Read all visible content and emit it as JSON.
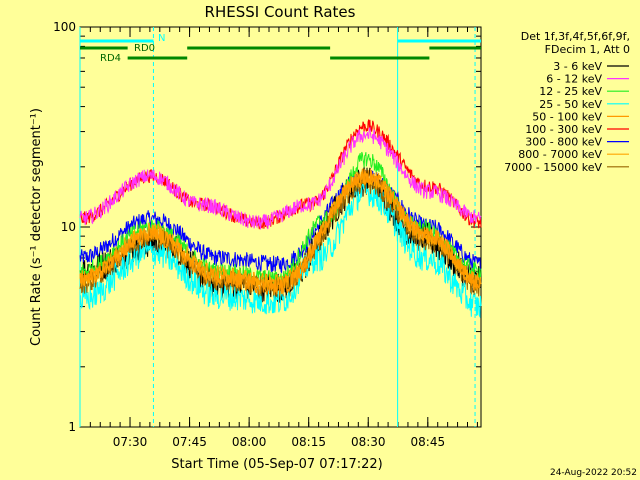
{
  "chart_data": {
    "type": "line",
    "title": "RHESSI Count Rates",
    "xlabel": "Start Time (05-Sep-07 07:17:22)",
    "ylabel": "Count Rate (s⁻¹ detector segment⁻¹)",
    "yscale": "log",
    "ylim": [
      1,
      100
    ],
    "xlim_minutes": [
      0,
      101
    ],
    "x_ticks": [
      {
        "label": "07:30",
        "minute": 12.6
      },
      {
        "label": "07:45",
        "minute": 27.6
      },
      {
        "label": "08:00",
        "minute": 42.6
      },
      {
        "label": "08:15",
        "minute": 57.6
      },
      {
        "label": "08:30",
        "minute": 72.6
      },
      {
        "label": "08:45",
        "minute": 87.6
      }
    ],
    "y_ticks": [
      {
        "label": "1",
        "value": 1
      },
      {
        "label": "10",
        "value": 10
      },
      {
        "label": "100",
        "value": 100
      }
    ],
    "legend_header": [
      "Det 1f,3f,4f,5f,6f,9f,",
      "FDecim 1, Att 0"
    ],
    "legend_placement": "right",
    "series": [
      {
        "name": "3 - 6 keV",
        "color": "#000000",
        "peaks": [
          [
            0,
            6.0
          ],
          [
            20,
            8.5
          ],
          [
            35,
            5.2
          ],
          [
            50,
            5.0
          ],
          [
            72,
            17
          ],
          [
            85,
            9
          ],
          [
            101,
            5.5
          ]
        ]
      },
      {
        "name": "6 - 12 keV",
        "color": "#ff33ff",
        "peaks": [
          [
            0,
            11
          ],
          [
            18,
            18
          ],
          [
            30,
            13
          ],
          [
            45,
            10.5
          ],
          [
            58,
            13
          ],
          [
            72,
            29
          ],
          [
            88,
            15
          ],
          [
            101,
            11
          ]
        ]
      },
      {
        "name": "12 - 25 keV",
        "color": "#22ee22",
        "peaks": [
          [
            0,
            6.0
          ],
          [
            18,
            10
          ],
          [
            35,
            6.0
          ],
          [
            50,
            5.5
          ],
          [
            62,
            11
          ],
          [
            72,
            22
          ],
          [
            85,
            10
          ],
          [
            101,
            6.0
          ]
        ]
      },
      {
        "name": "25 - 50 keV",
        "color": "#00ffff",
        "peaks": [
          [
            0,
            4.3
          ],
          [
            18,
            7.5
          ],
          [
            35,
            4.5
          ],
          [
            50,
            4.2
          ],
          [
            60,
            7
          ],
          [
            72,
            15
          ],
          [
            87,
            7
          ],
          [
            101,
            4.0
          ]
        ]
      },
      {
        "name": "50 - 100 keV",
        "color": "#ff9900",
        "peaks": [
          [
            0,
            5.5
          ],
          [
            18,
            9
          ],
          [
            35,
            5.5
          ],
          [
            50,
            5.0
          ],
          [
            72,
            18
          ],
          [
            88,
            9
          ],
          [
            101,
            5.2
          ]
        ]
      },
      {
        "name": "100 - 300 keV",
        "color": "#ff0000",
        "peaks": [
          [
            0,
            11
          ],
          [
            18,
            18
          ],
          [
            30,
            13
          ],
          [
            45,
            10.5
          ],
          [
            58,
            13
          ],
          [
            72,
            32
          ],
          [
            88,
            16
          ],
          [
            101,
            10.5
          ]
        ]
      },
      {
        "name": "300 - 800 keV",
        "color": "#0000ff",
        "peaks": [
          [
            0,
            7
          ],
          [
            18,
            11
          ],
          [
            35,
            7
          ],
          [
            50,
            6.5
          ],
          [
            72,
            18
          ],
          [
            88,
            10
          ],
          [
            101,
            6.5
          ]
        ]
      },
      {
        "name": "800 - 7000 keV",
        "color": "#ffa500",
        "peaks": [
          [
            0,
            5.5
          ],
          [
            18,
            9.5
          ],
          [
            35,
            5.8
          ],
          [
            50,
            5.3
          ],
          [
            72,
            17.5
          ],
          [
            88,
            9
          ],
          [
            101,
            5.3
          ]
        ]
      },
      {
        "name": "7000 - 15000 keV",
        "color": "#996600",
        "peaks": [
          [
            0,
            5.2
          ],
          [
            18,
            9
          ],
          [
            35,
            5.4
          ],
          [
            50,
            5.0
          ],
          [
            72,
            16.5
          ],
          [
            88,
            8.5
          ],
          [
            101,
            5.0
          ]
        ]
      }
    ],
    "legend_entries": [
      "3 - 6 keV",
      "6 - 12 keV",
      "12 - 25 keV",
      "25 - 50 keV",
      "50 - 100 keV",
      "100 - 300 keV",
      "300 - 800 keV",
      "800 - 7000 keV",
      "7000 - 15000 keV"
    ],
    "status_bars": [
      {
        "label": "N",
        "color": "#00ffff",
        "segments": [
          [
            0,
            18.5
          ],
          [
            80,
            101
          ]
        ]
      },
      {
        "label": "RD0",
        "color": "#008800",
        "segments": [
          [
            0,
            12
          ],
          [
            27,
            63
          ],
          [
            88,
            101
          ]
        ]
      },
      {
        "label": "RD4",
        "color": "#008800",
        "segments": [
          [
            12,
            27
          ],
          [
            63,
            88
          ]
        ]
      }
    ],
    "vertical_markers": [
      {
        "minute": 0,
        "style": "solid",
        "color": "#00ffff"
      },
      {
        "minute": 18.5,
        "style": "dashed",
        "color": "#00ffff"
      },
      {
        "minute": 80,
        "style": "solid",
        "color": "#00ffff"
      },
      {
        "minute": 99.5,
        "style": "dashed",
        "color": "#00ffff"
      }
    ],
    "timestamp": "24-Aug-2022 20:52"
  }
}
